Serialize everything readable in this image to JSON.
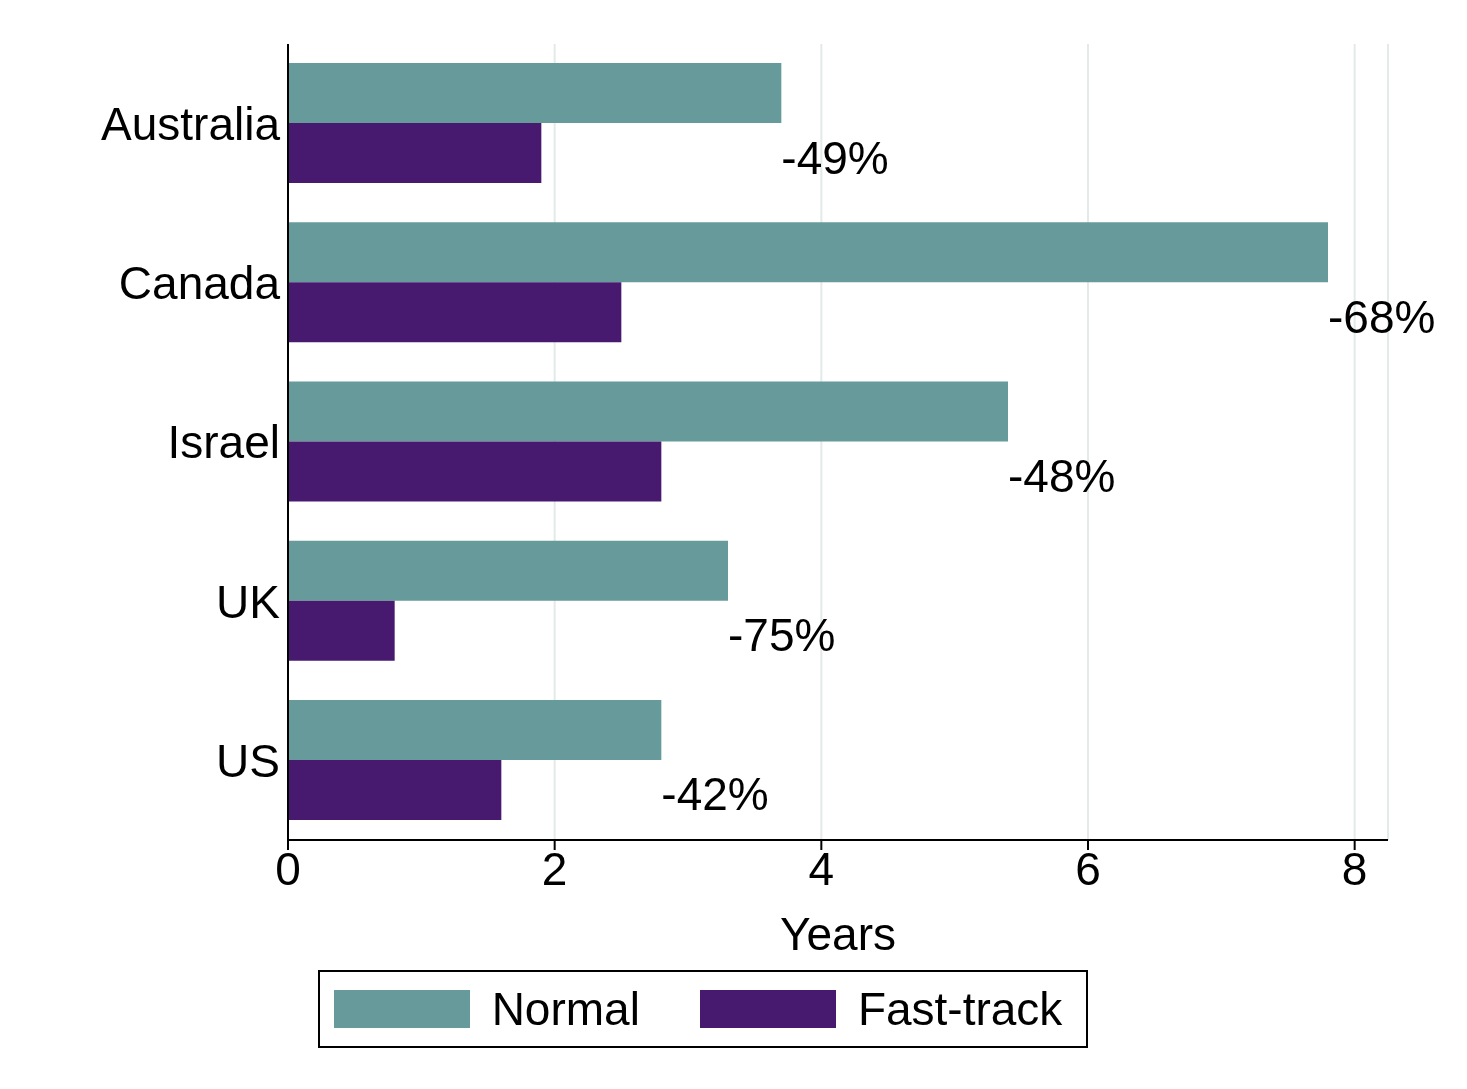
{
  "chart_data": {
    "type": "bar",
    "orientation": "horizontal",
    "xlabel": "Years",
    "categories": [
      "Australia",
      "Canada",
      "Israel",
      "UK",
      "US"
    ],
    "series": [
      {
        "name": "Normal",
        "color": "#679a9a",
        "values": [
          3.7,
          7.8,
          5.4,
          3.3,
          2.8
        ]
      },
      {
        "name": "Fast-track",
        "color": "#481a6f",
        "values": [
          1.9,
          2.5,
          2.8,
          0.8,
          1.6
        ]
      }
    ],
    "xlim": [
      0,
      8.25
    ],
    "xticks": [
      0,
      2,
      4,
      6,
      8
    ],
    "grid": "x",
    "legend": "bottom",
    "annotations": [
      {
        "text": "-49%",
        "x": 3.7,
        "y": "Australia"
      },
      {
        "text": "-68%",
        "x": 7.8,
        "y": "Canada"
      },
      {
        "text": "-48%",
        "x": 5.4,
        "y": "Israel"
      },
      {
        "text": "-75%",
        "x": 3.3,
        "y": "UK"
      },
      {
        "text": "-42%",
        "x": 2.8,
        "y": "US"
      }
    ]
  }
}
